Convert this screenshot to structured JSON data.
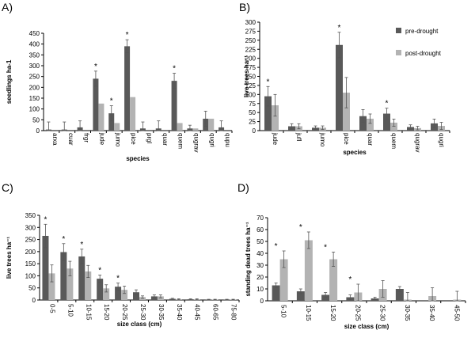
{
  "colors": {
    "pre": "#595959",
    "post": "#b3b3b3",
    "axis": "#000000",
    "err": "#555555"
  },
  "chart_data": [
    {
      "type": "bar",
      "panel_label": "A)",
      "ylabel": "seedlings ha-1",
      "xlabel": "species",
      "ylim": [
        0,
        450
      ],
      "yticks": [
        0,
        50,
        100,
        150,
        200,
        250,
        300,
        350,
        400,
        450
      ],
      "categories": [
        "arxa",
        "cuar",
        "frgr",
        "jude",
        "jumo",
        "pice",
        "prgl",
        "quar",
        "quem",
        "qugrav",
        "qugri",
        "qupu"
      ],
      "series": [
        {
          "key": "pre",
          "values": [
            5,
            5,
            15,
            240,
            80,
            390,
            10,
            10,
            230,
            10,
            55,
            15
          ],
          "errors": [
            35,
            35,
            30,
            35,
            35,
            30,
            30,
            35,
            35,
            15,
            35,
            30
          ]
        },
        {
          "key": "post",
          "values": [
            0,
            0,
            0,
            125,
            35,
            155,
            0,
            0,
            35,
            10,
            55,
            0
          ],
          "errors": [
            0,
            0,
            0,
            0,
            0,
            0,
            0,
            0,
            0,
            0,
            0,
            0
          ]
        }
      ],
      "significant": [
        3,
        4,
        5,
        8
      ]
    },
    {
      "type": "bar",
      "panel_label": "B)",
      "ylabel": "live trees ha⁻¹",
      "xlabel": "species",
      "ylim": [
        0,
        300
      ],
      "yticks": [
        0,
        25,
        50,
        75,
        100,
        125,
        150,
        175,
        200,
        225,
        250,
        275,
        300
      ],
      "categories": [
        "jude",
        "jufl",
        "jumo",
        "pice",
        "quar",
        "quem",
        "qugrav",
        "qugri"
      ],
      "series": [
        {
          "name": "pre-drought",
          "key": "pre",
          "values": [
            95,
            12,
            8,
            237,
            40,
            47,
            10,
            20
          ],
          "errors": [
            27,
            7,
            5,
            35,
            18,
            15,
            6,
            12
          ]
        },
        {
          "name": "post-drought",
          "key": "post",
          "values": [
            70,
            12,
            8,
            105,
            33,
            22,
            7,
            13
          ],
          "errors": [
            30,
            7,
            5,
            42,
            13,
            10,
            5,
            10
          ]
        }
      ],
      "significant": [
        0,
        3,
        5
      ],
      "legend_position": "top-right"
    },
    {
      "type": "bar",
      "panel_label": "C)",
      "ylabel": "live trees ha⁻¹",
      "xlabel": "size class (cm)",
      "ylim": [
        0,
        350
      ],
      "yticks": [
        0,
        50,
        100,
        150,
        200,
        250,
        300,
        350
      ],
      "categories": [
        "0-5",
        "5-10",
        "10-15",
        "15-20",
        "20-25",
        "25-30",
        "30-35",
        "35-40",
        "40-45",
        "60-65",
        "75-80"
      ],
      "series": [
        {
          "key": "pre",
          "values": [
            265,
            198,
            180,
            88,
            55,
            32,
            15,
            5,
            3,
            2,
            2
          ],
          "errors": [
            48,
            35,
            30,
            15,
            15,
            10,
            6,
            2,
            2,
            1,
            1
          ]
        },
        {
          "key": "post",
          "values": [
            110,
            130,
            118,
            48,
            42,
            12,
            15,
            3,
            3,
            2,
            2
          ],
          "errors": [
            35,
            30,
            25,
            15,
            15,
            5,
            6,
            2,
            2,
            1,
            1
          ]
        }
      ],
      "significant": [
        0,
        1,
        2,
        3,
        4
      ]
    },
    {
      "type": "bar",
      "panel_label": "D)",
      "ylabel": "standing dead trees ha⁻¹",
      "xlabel": "size class (cm)",
      "ylim": [
        0,
        70
      ],
      "yticks": [
        0,
        10,
        20,
        30,
        40,
        50,
        60,
        70
      ],
      "categories": [
        "5-10",
        "10-15",
        "15-20",
        "20-25",
        "25-30",
        "30-35",
        "35-40",
        "45-50"
      ],
      "series": [
        {
          "key": "pre",
          "values": [
            13,
            8,
            5,
            3,
            2,
            10,
            0,
            0
          ],
          "errors": [
            2,
            2,
            2,
            2,
            1,
            2,
            0,
            0
          ]
        },
        {
          "key": "post",
          "values": [
            35,
            51,
            35,
            7,
            10,
            1,
            4,
            1
          ],
          "errors": [
            7,
            7,
            6,
            7,
            7,
            6,
            7,
            7
          ]
        }
      ],
      "significant": [
        0,
        1,
        2,
        3
      ]
    }
  ]
}
